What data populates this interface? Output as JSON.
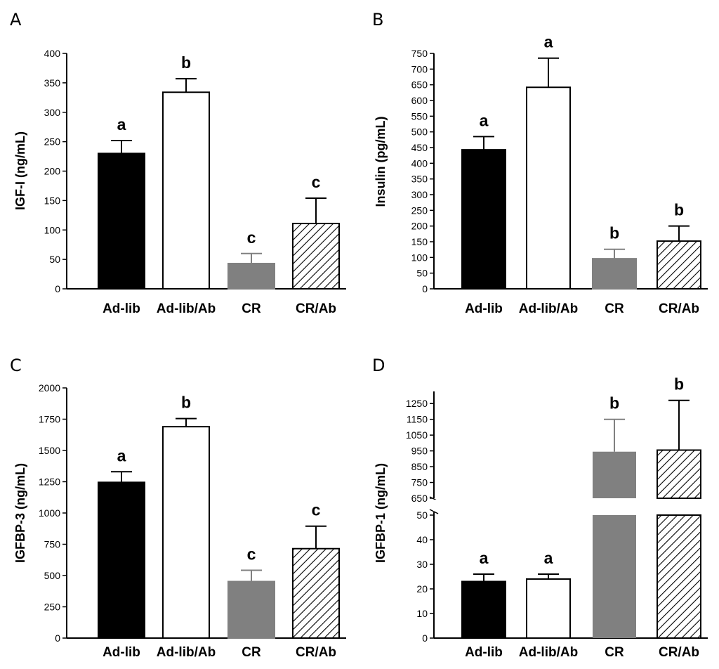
{
  "figure": {
    "panel_letters": [
      "A",
      "B",
      "C",
      "D"
    ]
  },
  "chart_data": [
    {
      "panel": "A",
      "type": "bar",
      "ylabel": "IGF-I (ng/mL)",
      "xlabel": "",
      "categories": [
        "Ad-lib",
        "Ad-lib/Ab",
        "CR",
        "CR/Ab"
      ],
      "values": [
        230,
        334,
        43,
        111
      ],
      "errors": [
        22,
        23,
        17,
        43
      ],
      "significance": [
        "a",
        "b",
        "c",
        "c"
      ],
      "fills": [
        "black",
        "white",
        "gray",
        "hatched"
      ],
      "ylim": [
        0,
        400
      ],
      "yticks": [
        0,
        50,
        100,
        150,
        200,
        250,
        300,
        350,
        400
      ]
    },
    {
      "panel": "B",
      "type": "bar",
      "ylabel": "Insulin (pg/mL)",
      "xlabel": "",
      "categories": [
        "Ad-lib",
        "Ad-lib/Ab",
        "CR",
        "CR/Ab"
      ],
      "values": [
        443,
        642,
        96,
        152
      ],
      "errors": [
        42,
        93,
        30,
        48
      ],
      "significance": [
        "a",
        "a",
        "b",
        "b"
      ],
      "fills": [
        "black",
        "white",
        "gray",
        "hatched"
      ],
      "ylim": [
        0,
        750
      ],
      "yticks": [
        0,
        50,
        100,
        150,
        200,
        250,
        300,
        350,
        400,
        450,
        500,
        550,
        600,
        650,
        700,
        750
      ]
    },
    {
      "panel": "C",
      "type": "bar",
      "ylabel": "IGFBP-3 (ng/mL)",
      "xlabel": "",
      "categories": [
        "Ad-lib",
        "Ad-lib/Ab",
        "CR",
        "CR/Ab"
      ],
      "values": [
        1245,
        1690,
        452,
        715
      ],
      "errors": [
        85,
        65,
        90,
        180
      ],
      "significance": [
        "a",
        "b",
        "c",
        "c"
      ],
      "fills": [
        "black",
        "white",
        "gray",
        "hatched"
      ],
      "ylim": [
        0,
        2000
      ],
      "yticks": [
        0,
        250,
        500,
        750,
        1000,
        1250,
        1500,
        1750,
        2000
      ]
    },
    {
      "panel": "D",
      "type": "bar",
      "ylabel": "IGFBP-1 (ng/mL)",
      "xlabel": "",
      "categories": [
        "Ad-lib",
        "Ad-lib/Ab",
        "CR",
        "CR/Ab"
      ],
      "values": [
        23,
        24,
        945,
        955
      ],
      "errors": [
        3,
        2,
        205,
        315
      ],
      "significance": [
        "a",
        "a",
        "b",
        "b"
      ],
      "fills": [
        "black",
        "white",
        "gray",
        "hatched"
      ],
      "broken_axis": true,
      "ylim_lower": [
        0,
        50
      ],
      "yticks_lower": [
        0,
        10,
        20,
        30,
        40,
        50
      ],
      "ylim_upper": [
        650,
        1300
      ],
      "yticks_upper": [
        650,
        750,
        850,
        950,
        1050,
        1150,
        1250
      ]
    }
  ]
}
